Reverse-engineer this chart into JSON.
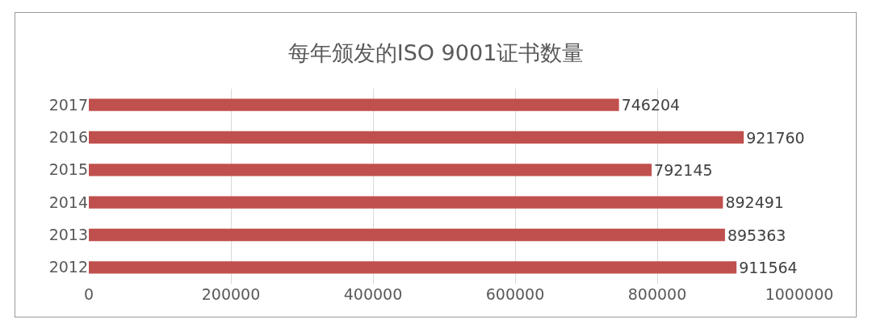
{
  "chart_data": {
    "type": "bar",
    "title": "每年颁发的ISO 9001证书数量",
    "orientation": "horizontal",
    "categories": [
      "2017",
      "2016",
      "2015",
      "2014",
      "2013",
      "2012"
    ],
    "values": [
      746204,
      921760,
      792145,
      892491,
      895363,
      911564
    ],
    "color": "#c0504d",
    "data_labels": true,
    "xlim": [
      0,
      1000000
    ],
    "xticks": [
      0,
      200000,
      400000,
      600000,
      800000,
      1000000
    ],
    "grid": "x"
  }
}
